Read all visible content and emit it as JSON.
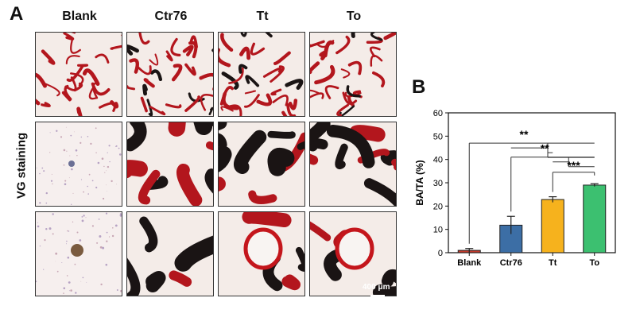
{
  "panel_a": {
    "letter": "A",
    "columns": [
      "Blank",
      "Ctr76",
      "Tt",
      "To"
    ],
    "row_label": "VG staining",
    "scale_bar": "400 μm"
  },
  "chart_data": {
    "panel_letter": "B",
    "type": "bar",
    "categories": [
      "Blank",
      "Ctr76",
      "Tt",
      "To"
    ],
    "values": [
      1.0,
      11.8,
      22.8,
      29.0
    ],
    "errors": [
      0.8,
      3.8,
      1.2,
      0.6
    ],
    "colors": [
      "#c0392b",
      "#3c6ea5",
      "#f6b21d",
      "#3cc070"
    ],
    "xlabel": "",
    "ylabel": "BA/TA (%)",
    "ylim": [
      0,
      60
    ],
    "yticks": [
      0,
      10,
      20,
      30,
      40,
      50,
      60
    ],
    "grid": false,
    "significance": [
      {
        "from": "Blank",
        "to": [
          "Ctr76",
          "Tt",
          "To"
        ],
        "label": "**"
      },
      {
        "from": "Ctr76",
        "to": [
          "Tt",
          "To"
        ],
        "label": "**"
      },
      {
        "from": "Tt",
        "to": [
          "To"
        ],
        "label": "***"
      }
    ]
  }
}
